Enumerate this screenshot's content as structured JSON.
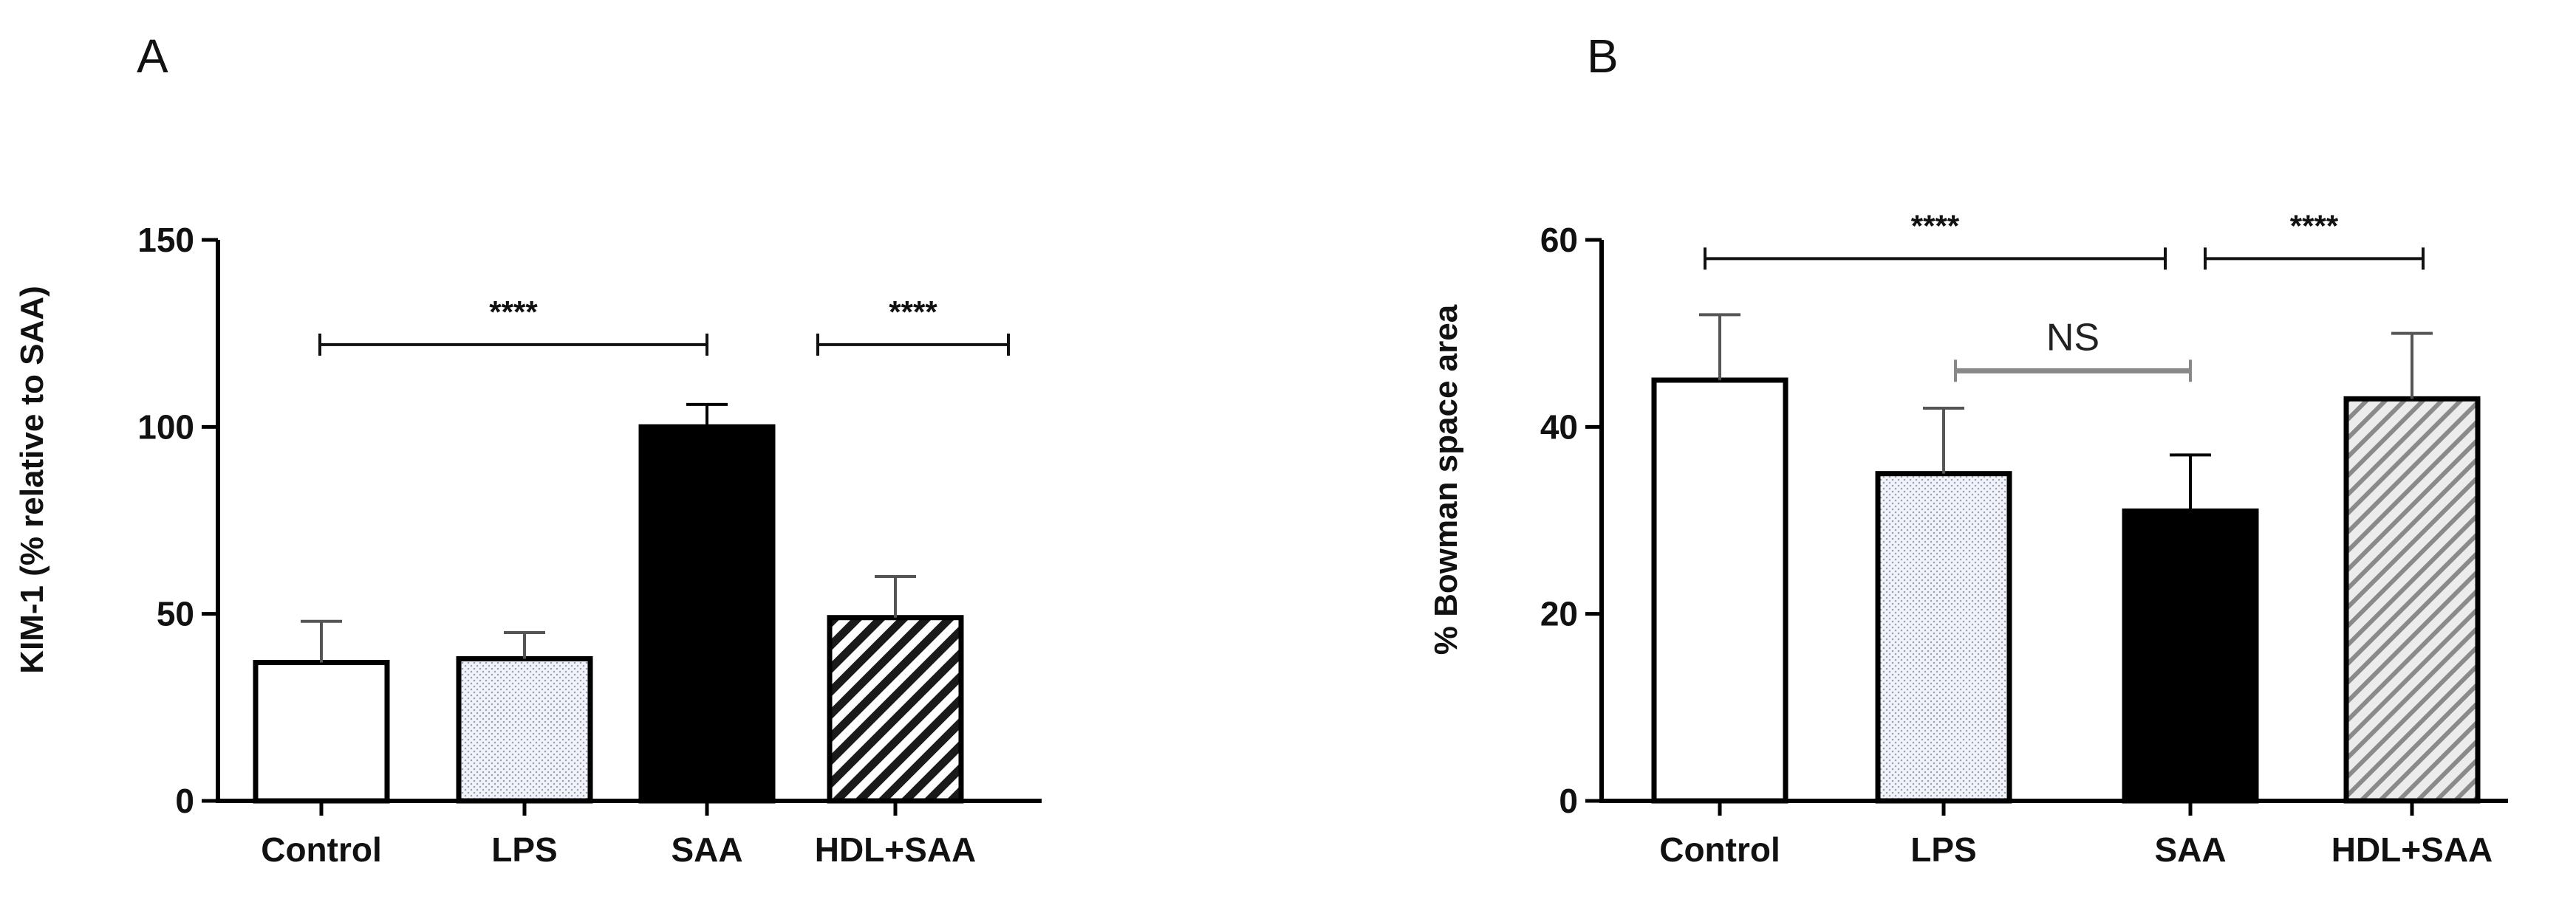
{
  "chart_data": [
    {
      "type": "bar",
      "panel": "A",
      "title": "",
      "xlabel": "",
      "ylabel": "KIM-1 (% relative to SAA)",
      "ylim": [
        0,
        150
      ],
      "yticks": [
        0,
        50,
        100,
        150
      ],
      "grid": false,
      "categories": [
        "Control",
        "LPS",
        "SAA",
        "HDL+SAA"
      ],
      "values": [
        37,
        38,
        100,
        49
      ],
      "errors": [
        11,
        7,
        6,
        11
      ],
      "fills": [
        "white",
        "dots",
        "black",
        "hatch-dark"
      ],
      "annotations": [
        {
          "from": 0,
          "to": 2,
          "y": 122,
          "text": "****",
          "color": "#111111"
        },
        {
          "from": 3,
          "to": 3.5,
          "y": 122,
          "text": "****",
          "color": "#111111"
        }
      ]
    },
    {
      "type": "bar",
      "panel": "B",
      "title": "",
      "xlabel": "",
      "ylabel": "% Bowman space area",
      "ylim": [
        0,
        60
      ],
      "yticks": [
        0,
        20,
        40,
        60
      ],
      "grid": false,
      "categories": [
        "Control",
        "LPS",
        "SAA",
        "HDL+SAA"
      ],
      "values": [
        45,
        35,
        31,
        43
      ],
      "errors": [
        7,
        7,
        6,
        7
      ],
      "fills": [
        "white",
        "dots",
        "black",
        "hatch-gray"
      ],
      "annotations": [
        {
          "from": 0,
          "to": 2,
          "y": 58,
          "text": "****",
          "color": "#111111"
        },
        {
          "from": 2.2,
          "to": 3,
          "y": 58,
          "text": "****",
          "color": "#111111"
        },
        {
          "from": 1,
          "to": 2,
          "y": 46,
          "text": "NS",
          "color": "#888888"
        }
      ]
    }
  ]
}
